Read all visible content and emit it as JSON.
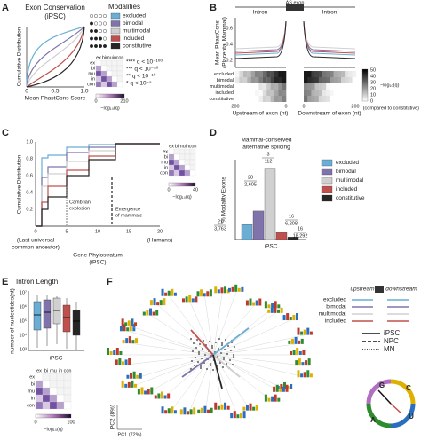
{
  "modalities": [
    {
      "name": "excluded",
      "color": "#6aaed6"
    },
    {
      "name": "bimodal",
      "color": "#8073ac"
    },
    {
      "name": "multimodal",
      "color": "#d0d0d0"
    },
    {
      "name": "included",
      "color": "#c0504d"
    },
    {
      "name": "constitutive",
      "color": "#262626"
    }
  ],
  "panels": {
    "A": {
      "letter": "A",
      "title": "Exon Conservation",
      "subtitle": "(iPSC)",
      "ylabel": "Cumulative Distribution",
      "xlabel": "Mean PhastCons Score",
      "xticks": [
        "0",
        "0.5",
        "1.0"
      ],
      "legend_title": "Modalities",
      "heatmap_labels": [
        "ex",
        "bi",
        "mu",
        "in",
        "con"
      ],
      "q_legend": [
        "**** q < 10⁻¹⁰⁰",
        "*** q < 10⁻⁵⁰",
        "** q < 10⁻¹⁰",
        "* q < 10⁻⁵"
      ],
      "colorbar_ticks": [
        "0",
        "210"
      ],
      "colorbar_label": "−log₁₀(q)"
    },
    "B": {
      "letter": "B",
      "ylabel": "Mean PhastCons",
      "ylabel2": "(Placental Mammal)",
      "regions": [
        "Intron",
        "AS exon",
        "Intron"
      ],
      "yticks": [
        "0.2",
        "0.4",
        "0.6"
      ],
      "xticks": [
        "200",
        "0",
        "0",
        "200"
      ],
      "xlabels": [
        "Upstream of exon (nt)",
        "Downstream of exon (nt)"
      ],
      "colorbar_ticks": [
        "50",
        "40",
        "30",
        "20",
        "10",
        "0"
      ],
      "colorbar_label": "−log₁₀(q)",
      "colorbar_note": "(compared to constitutive)"
    },
    "C": {
      "letter": "C",
      "ylabel": "Cumulative Distribution",
      "yticks": [
        "0.2",
        "0.4",
        "0.6",
        "0.8",
        "1.0"
      ],
      "xticks": [
        "0",
        "5",
        "10",
        "15",
        "20"
      ],
      "left_note": [
        "(Last universal",
        "common ancestor)"
      ],
      "right_note": "(Humans)",
      "xlabel": "Gene Phylostratum",
      "xlabel2": "(iPSC)",
      "annotations": [
        "Cambrian",
        "explosion",
        "Emergence",
        "of mammals"
      ],
      "heatmap_labels": [
        "ex",
        "bi",
        "mu",
        "in",
        "con"
      ],
      "colorbar_ticks": [
        "0",
        "40"
      ],
      "colorbar_label": "−log₁₀(q)"
    },
    "D": {
      "letter": "D",
      "title": [
        "Mammal-conserved",
        "alternative splicing"
      ],
      "ylabel": "% Modality Exons",
      "xlabel": "iPSC",
      "ylim": [
        0,
        3
      ],
      "bars": [
        {
          "value": 0.56,
          "numerator": "21",
          "denominator": "3,763"
        },
        {
          "value": 1.07,
          "numerator": "28",
          "denominator": "2,605"
        },
        {
          "value": 2.68,
          "numerator": "3",
          "denominator": "112"
        },
        {
          "value": 0.26,
          "numerator": "16",
          "denominator": "6,208"
        },
        {
          "value": 0.09,
          "numerator": "16",
          "denominator": "18,292"
        }
      ]
    },
    "E": {
      "letter": "E",
      "title": "Intron Length",
      "ylabel": "number of nucleotides(nt)",
      "yticks": [
        "10⁷",
        "10⁶",
        "10⁵",
        "10⁴",
        "10³"
      ],
      "xlabel": "iPSC",
      "heatmap_labels": [
        "ex",
        "bi",
        "mu",
        "in",
        "con"
      ],
      "colorbar_ticks": [
        "0",
        "100"
      ],
      "colorbar_label": "−log₁₀(q)"
    },
    "F": {
      "letter": "F",
      "xlabel": "PC1 (72%)",
      "ylabel": "PC2 (8%)",
      "legend_heads": [
        "upstream",
        "downstream"
      ],
      "lines": [
        "iPSC",
        "NPC",
        "MN"
      ],
      "wheel": [
        "G",
        "C",
        "U",
        "A"
      ]
    }
  }
}
